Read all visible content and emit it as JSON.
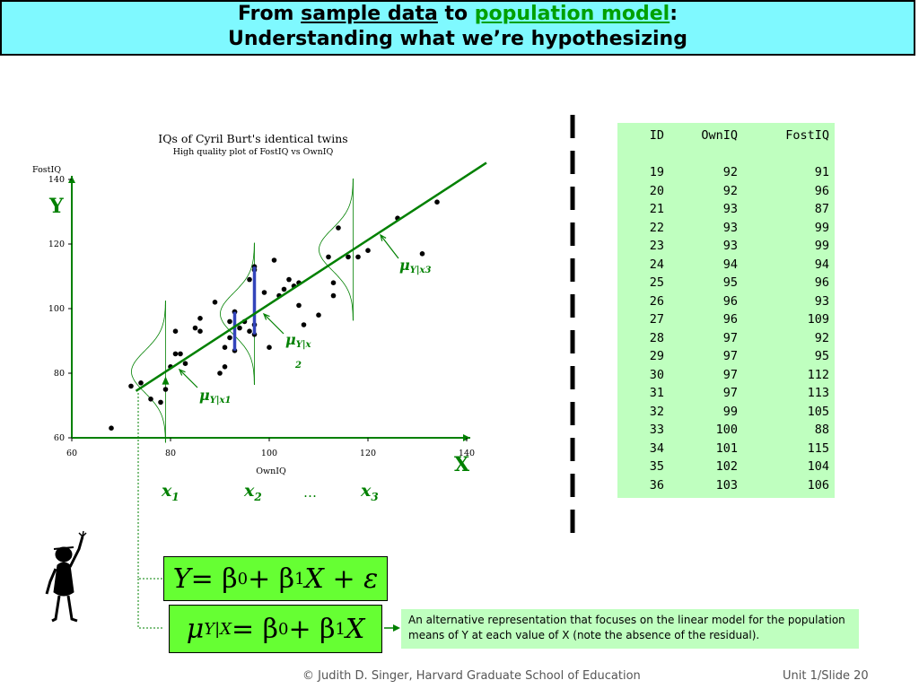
{
  "header": {
    "line1_prefix": "From ",
    "line1_sample": "sample data",
    "line1_mid": " to ",
    "line1_population": "population model",
    "line1_suffix": ":",
    "line2": "Understanding what we’re hypothesizing"
  },
  "chart_data": {
    "type": "scatter",
    "title": "IQs of Cyril Burt's identical twins",
    "subtitle": "High quality plot of FostIQ vs OwnIQ",
    "xlabel": "OwnIQ",
    "ylabel": "FostIQ",
    "xlim": [
      60,
      140
    ],
    "ylim": [
      60,
      140
    ],
    "xticks": [
      "60",
      "80",
      "100",
      "120",
      "140"
    ],
    "yticks": [
      "60",
      "80",
      "100",
      "120",
      "140"
    ],
    "points": [
      [
        68,
        63
      ],
      [
        72,
        76
      ],
      [
        74,
        77
      ],
      [
        76,
        72
      ],
      [
        78,
        71
      ],
      [
        79,
        75
      ],
      [
        80,
        82
      ],
      [
        81,
        86
      ],
      [
        81,
        93
      ],
      [
        82,
        86
      ],
      [
        83,
        83
      ],
      [
        85,
        94
      ],
      [
        86,
        97
      ],
      [
        86,
        93
      ],
      [
        89,
        102
      ],
      [
        90,
        80
      ],
      [
        91,
        82
      ],
      [
        91,
        88
      ],
      [
        92,
        91
      ],
      [
        92,
        96
      ],
      [
        93,
        87
      ],
      [
        93,
        99
      ],
      [
        93,
        99
      ],
      [
        94,
        94
      ],
      [
        95,
        96
      ],
      [
        96,
        93
      ],
      [
        96,
        109
      ],
      [
        97,
        92
      ],
      [
        97,
        95
      ],
      [
        97,
        112
      ],
      [
        97,
        113
      ],
      [
        99,
        105
      ],
      [
        100,
        88
      ],
      [
        101,
        115
      ],
      [
        102,
        104
      ],
      [
        103,
        106
      ],
      [
        104,
        109
      ],
      [
        105,
        107
      ],
      [
        106,
        108
      ],
      [
        106,
        101
      ],
      [
        107,
        95
      ],
      [
        110,
        98
      ],
      [
        112,
        116
      ],
      [
        113,
        104
      ],
      [
        113,
        108
      ],
      [
        114,
        125
      ],
      [
        116,
        116
      ],
      [
        118,
        116
      ],
      [
        120,
        118
      ],
      [
        126,
        128
      ],
      [
        131,
        117
      ],
      [
        134,
        133
      ]
    ],
    "regression": {
      "x": [
        73,
        134
      ],
      "y": [
        74.5,
        135.2
      ]
    }
  },
  "annotations": {
    "y_axis_letter": "Y",
    "x_axis_letter": "X",
    "x1": "x",
    "x1_sub": "1",
    "x2": "x",
    "x2_sub": "2",
    "dots": "…",
    "x3": "x",
    "x3_sub": "3",
    "mu1": "μ",
    "mu1_sub": "Y|x1",
    "mu2": "μ",
    "mu2_sub": "Y|x",
    "mu2_sub2": "2",
    "mu3": "μ",
    "mu3_sub": "Y|x3"
  },
  "table": {
    "headers": [
      "ID",
      "OwnIQ",
      "FostIQ"
    ],
    "rows": [
      [
        "19",
        "92",
        "91"
      ],
      [
        "20",
        "92",
        "96"
      ],
      [
        "21",
        "93",
        "87"
      ],
      [
        "22",
        "93",
        "99"
      ],
      [
        "23",
        "93",
        "99"
      ],
      [
        "24",
        "94",
        "94"
      ],
      [
        "25",
        "95",
        "96"
      ],
      [
        "26",
        "96",
        "93"
      ],
      [
        "27",
        "96",
        "109"
      ],
      [
        "28",
        "97",
        "92"
      ],
      [
        "29",
        "97",
        "95"
      ],
      [
        "30",
        "97",
        "112"
      ],
      [
        "31",
        "97",
        "113"
      ],
      [
        "32",
        "99",
        "105"
      ],
      [
        "33",
        "100",
        "88"
      ],
      [
        "34",
        "101",
        "115"
      ],
      [
        "35",
        "102",
        "104"
      ],
      [
        "36",
        "103",
        "106"
      ]
    ]
  },
  "equations": {
    "model_lhs": "Y",
    "model_rhs_1": " = β",
    "model_sub0": "0",
    "model_rhs_2": " + β",
    "model_sub1": "1",
    "model_rhs_3": "X + ε",
    "mean_mu": "μ",
    "mean_sub": "Y|X",
    "mean_rhs_1": " = β",
    "mean_sub0": "0",
    "mean_rhs_2": " + β",
    "mean_sub1": "1",
    "mean_rhs_3": "X"
  },
  "note": "An alternative representation that focuses on the linear model for the population means of Y at each value of X (note the absence of the residual).",
  "footer": {
    "copyright": "© Judith D. Singer, Harvard Graduate School of Education",
    "slide": "Unit 1/Slide 20"
  },
  "colors": {
    "title_bg": "#7ff9ff",
    "green": "#008000",
    "eq_bg": "#66ff33",
    "table_bg": "#bfffbf",
    "bracket": "#2233aa"
  }
}
